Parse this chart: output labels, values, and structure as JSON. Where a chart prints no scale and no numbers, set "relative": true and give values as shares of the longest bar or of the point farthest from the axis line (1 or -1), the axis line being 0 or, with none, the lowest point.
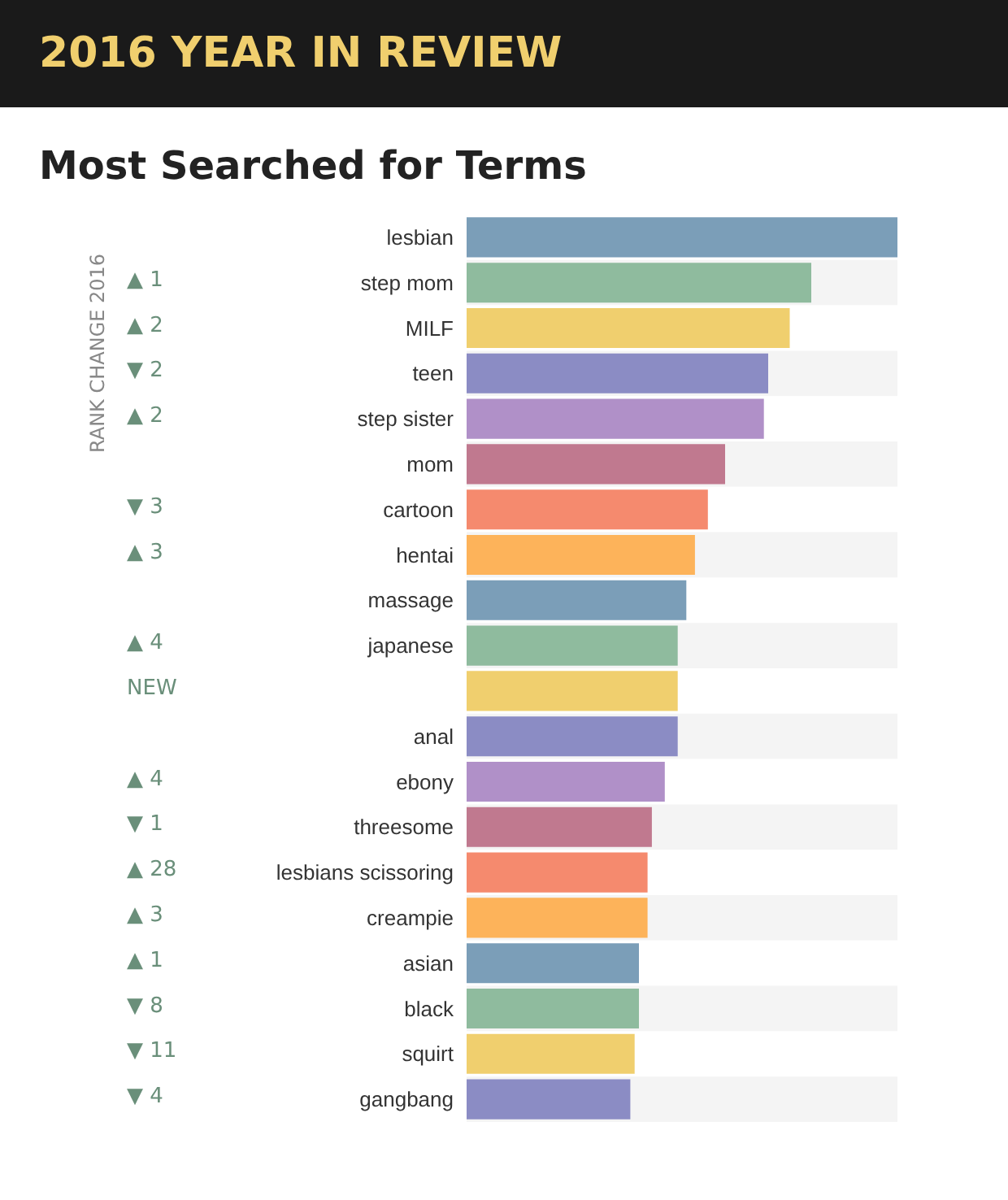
{
  "chart_data": {
    "type": "bar",
    "title": "Most Searched for Terms",
    "subtitle": "2016 YEAR IN REVIEW",
    "orientation": "horizontal",
    "relative": true,
    "categories": [
      "lesbian",
      "step mom",
      "MILF",
      "teen",
      "step sister",
      "mom",
      "cartoon",
      "hentai",
      "massage",
      "japanese",
      null,
      "anal",
      "ebony",
      "threesome",
      "lesbians scissoring",
      "creampie",
      "asian",
      "black",
      "squirt",
      "gangbang"
    ],
    "values": [
      1,
      0.8,
      0.75,
      0.7,
      0.69,
      0.6,
      0.56,
      0.53,
      0.51,
      0.49,
      0.49,
      0.49,
      0.46,
      0.43,
      0.42,
      0.42,
      0.4,
      0.4,
      0.39,
      0.38
    ],
    "colors": [
      "#7b9eb8",
      "#8fbb9e",
      "#f0cf6e",
      "#8b8cc4",
      "#b090c8",
      "#c0798f",
      "#f58a6e",
      "#fdb35a",
      "#7b9eb8",
      "#8fbb9e",
      "#f0cf6e",
      "#8b8cc4",
      "#b090c8",
      "#c0798f",
      "#f58a6e",
      "#fdb35a",
      "#7b9eb8",
      "#8fbb9e",
      "#f0cf6e",
      "#8b8cc4"
    ],
    "annotations": [
      "RANK CHANGE 2016",
      null,
      "▲ 1",
      "▲ 2",
      "▼ 2",
      "▲ 2",
      null,
      "▼ 3",
      "▲ 3",
      null,
      "▲ 4",
      "NEW",
      null,
      "▲ 4",
      "▼ 1",
      "▲ 28",
      "▲ 3",
      "▲ 1",
      "▼ 8",
      "▼ 11",
      "▼ 4"
    ]
  }
}
